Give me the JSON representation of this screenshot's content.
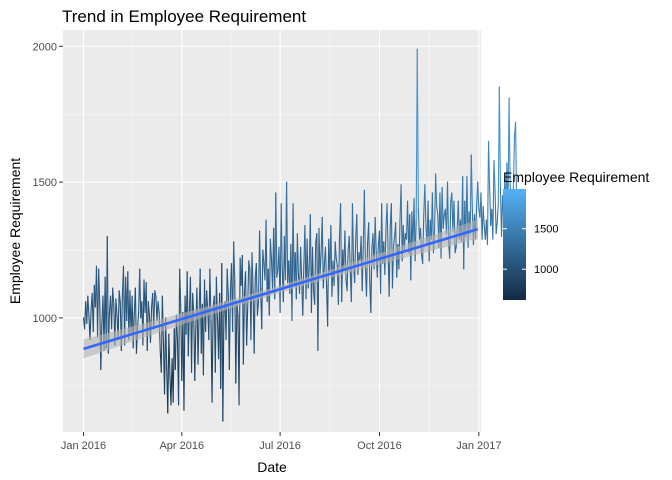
{
  "chart_data": {
    "type": "line",
    "title": "Trend in Employee Requirement",
    "xlabel": "Date",
    "ylabel": "Employee Requirement",
    "x_range": [
      "2015-12-13",
      "2017-01-03"
    ],
    "y_range": [
      580,
      2060
    ],
    "x_ticks": [
      {
        "date": "2016-01-01",
        "label": "Jan 2016"
      },
      {
        "date": "2016-04-01",
        "label": "Apr 2016"
      },
      {
        "date": "2016-07-01",
        "label": "Jul 2016"
      },
      {
        "date": "2016-10-01",
        "label": "Oct 2016"
      },
      {
        "date": "2017-01-01",
        "label": "Jan 2017"
      }
    ],
    "y_ticks": [
      1000,
      1500,
      2000
    ],
    "grid": true,
    "panel_background": "#ebebeb",
    "legend": {
      "title": "Employee Requirement",
      "position": "right",
      "labels": [
        1000,
        1500
      ],
      "range": [
        620,
        1990
      ],
      "color_low": "#132b43",
      "color_high": "#56b1f7"
    },
    "trend": {
      "type": "linear",
      "color": "#3366ff",
      "ribbon_color": "#b3b3b3",
      "start": {
        "date": "2016-01-01",
        "value": 886
      },
      "end": {
        "date": "2016-12-31",
        "value": 1327
      },
      "se_ends": 35,
      "se_mid": 13
    },
    "x_start": "2016-01-01",
    "series": [
      {
        "values": [
          1000,
          960,
          1060,
          980,
          1080,
          1010,
          920,
          1030,
          1090,
          950,
          1120,
          1040,
          1190,
          930,
          1180,
          1060,
          810,
          980,
          1080,
          880,
          1150,
          890,
          1300,
          870,
          1020,
          1080,
          960,
          1110,
          1050,
          900,
          1070,
          1010,
          920,
          1100,
          1060,
          880,
          1090,
          1190,
          900,
          1150,
          990,
          1170,
          920,
          1100,
          940,
          1080,
          890,
          1020,
          1110,
          870,
          960,
          1020,
          1180,
          1000,
          1060,
          900,
          1140,
          1020,
          1130,
          880,
          1060,
          1010,
          910,
          1040,
          1090,
          960,
          1100,
          1080,
          990,
          1060,
          1020,
          880,
          800,
          1080,
          910,
          720,
          1000,
          820,
          650,
          940,
          790,
          680,
          850,
          690,
          960,
          810,
          1010,
          920,
          680,
          1180,
          1050,
          770,
          1020,
          660,
          1080,
          940,
          1170,
          860,
          1030,
          1150,
          800,
          1090,
          1020,
          770,
          970,
          1110,
          830,
          1010,
          1180,
          870,
          1050,
          790,
          1140,
          950,
          1100,
          1030,
          920,
          1180,
          990,
          690,
          1040,
          1080,
          800,
          1150,
          1000,
          850,
          1090,
          740,
          1200,
          620,
          1030,
          1060,
          920,
          1180,
          1090,
          810,
          1100,
          1200,
          950,
          1280,
          1140,
          760,
          1060,
          1010,
          680,
          1220,
          1120,
          1230,
          830,
          1100,
          1170,
          900,
          1040,
          1210,
          1180,
          920,
          1240,
          1100,
          870,
          1150,
          1200,
          1010,
          1060,
          1320,
          1110,
          960,
          1250,
          1200,
          1140,
          1360,
          1060,
          1180,
          1010,
          1290,
          1220,
          1100,
          1330,
          1070,
          1460,
          1150,
          1180,
          1260,
          1020,
          1420,
          1180,
          1060,
          1300,
          1140,
          1500,
          1130,
          1210,
          1090,
          1270,
          990,
          1420,
          1120,
          1240,
          1070,
          1310,
          1160,
          1090,
          1260,
          1140,
          1010,
          1200,
          1340,
          1070,
          1290,
          1110,
          1190,
          1380,
          1020,
          1260,
          1100,
          1050,
          1280,
          1310,
          880,
          1330,
          1160,
          1240,
          1370,
          1110,
          1200,
          1260,
          1120,
          970,
          1290,
          1170,
          1340,
          1080,
          1210,
          1120,
          1280,
          1220,
          1190,
          1050,
          1300,
          1420,
          1060,
          1250,
          1180,
          1320,
          1140,
          1100,
          1250,
          1300,
          1170,
          1060,
          1420,
          1210,
          1130,
          1290,
          1380,
          1160,
          1240,
          1210,
          1300,
          1100,
          1260,
          1470,
          1190,
          1080,
          1280,
          1350,
          1140,
          1020,
          1260,
          1310,
          1180,
          1370,
          1240,
          1150,
          1270,
          1320,
          1090,
          1420,
          1200,
          1280,
          1160,
          1330,
          1420,
          1240,
          1080,
          1340,
          1420,
          1110,
          1260,
          1300,
          1350,
          1150,
          1270,
          1180,
          1360,
          1490,
          1210,
          1340,
          1250,
          1310,
          1290,
          1430,
          1240,
          1380,
          1140,
          1390,
          1260,
          1440,
          1210,
          1360,
          1990,
          1400,
          1290,
          1330,
          1230,
          1200,
          1380,
          1490,
          1340,
          1270,
          1430,
          1210,
          1360,
          1290,
          1460,
          1240,
          1320,
          1530,
          1410,
          1380,
          1260,
          1460,
          1220,
          1480,
          1330,
          1380,
          1400,
          1310,
          1500,
          1280,
          1220,
          1430,
          1460,
          1320,
          1430,
          1240,
          1260,
          1330,
          1430,
          1290,
          1360,
          1280,
          1520,
          1180,
          1430,
          1300,
          1520,
          1260,
          1390,
          1310,
          1600,
          1400,
          1270,
          1380,
          1290,
          1420,
          1500,
          1400,
          1370,
          1460,
          1290,
          1410,
          1340,
          1290,
          1360,
          1270,
          1650,
          1480,
          1340,
          1400,
          1290,
          1580,
          1470,
          1310,
          1350,
          1420,
          1850,
          1480,
          1300,
          1450,
          1360,
          1510,
          1420,
          1570,
          1380,
          1810,
          1490,
          1410,
          1360,
          1480,
          1670,
          1720,
          1410,
          1400
        ]
      }
    ]
  }
}
